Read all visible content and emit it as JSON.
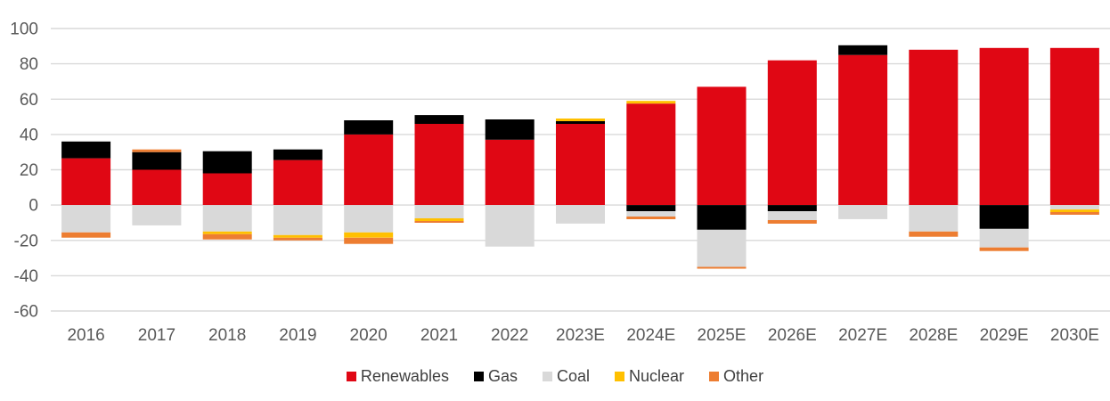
{
  "chart_data": {
    "type": "bar",
    "stacked": true,
    "title": "",
    "xlabel": "",
    "ylabel": "",
    "ylim": [
      -60,
      100
    ],
    "yticks": [
      100,
      80,
      60,
      40,
      20,
      0,
      -20,
      -40,
      -60
    ],
    "grid": true,
    "legend_position": "bottom-center",
    "categories": [
      "2016",
      "2017",
      "2018",
      "2019",
      "2020",
      "2021",
      "2022",
      "2023E",
      "2024E",
      "2025E",
      "2026E",
      "2027E",
      "2028E",
      "2029E",
      "2030E"
    ],
    "series": [
      {
        "name": "Renewables",
        "color": "#E00714",
        "values": [
          26.5,
          20,
          18,
          25.5,
          40,
          46,
          37,
          46,
          57.5,
          67,
          82,
          85,
          88,
          89,
          89
        ]
      },
      {
        "name": "Gas",
        "color": "#000000",
        "values": [
          9.5,
          10,
          12.5,
          6,
          8,
          5,
          11.5,
          1.5,
          -3.5,
          -14,
          -3.5,
          5.5,
          0,
          -13.5,
          0
        ]
      },
      {
        "name": "Coal",
        "color": "#D9D9D9",
        "values": [
          -15.5,
          -11.5,
          -15,
          -17,
          -15.5,
          -7.5,
          -23.5,
          -10.5,
          -3,
          -21,
          -5,
          -8,
          -15,
          -10.5,
          -2.5
        ]
      },
      {
        "name": "Nuclear",
        "color": "#FFC000",
        "values": [
          0,
          0,
          -1.5,
          -1.5,
          -3,
          -1.5,
          0,
          1.5,
          1.5,
          0,
          0,
          0,
          0,
          0,
          -1.5
        ]
      },
      {
        "name": "Other",
        "color": "#ED7D31",
        "values": [
          -3,
          1.5,
          -3,
          -1.5,
          -3.5,
          -1,
          0,
          0,
          -1.5,
          -1,
          -2,
          0,
          -3,
          -2,
          -1.5
        ]
      }
    ]
  },
  "style": {
    "background": "#FFFFFF",
    "gridline_color": "#D9D9D9",
    "axis_label_color": "#595959",
    "legend_text_color": "#404040"
  }
}
